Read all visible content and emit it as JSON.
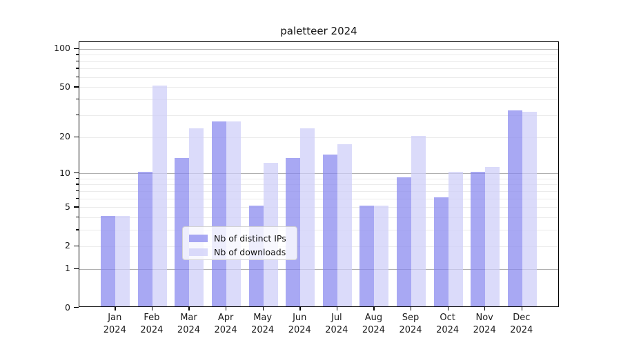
{
  "chart_data": {
    "type": "bar",
    "title": "paletteer 2024",
    "categories": [
      "Jan",
      "Feb",
      "Mar",
      "Apr",
      "May",
      "Jun",
      "Jul",
      "Aug",
      "Sep",
      "Oct",
      "Nov",
      "Dec"
    ],
    "category_year": "2024",
    "series": [
      {
        "name": "Nb of distinct IPs",
        "color": "rgba(134,134,238,0.72)",
        "values": [
          4,
          10,
          13,
          26,
          5,
          13,
          14,
          5,
          9,
          6,
          10,
          32
        ]
      },
      {
        "name": "Nb of downloads",
        "color": "rgba(205,205,248,0.72)",
        "values": [
          4,
          50,
          23,
          26,
          12,
          23,
          17,
          5,
          20,
          10,
          11,
          31
        ]
      }
    ],
    "yscale": "log1p",
    "ylim": [
      0,
      113
    ],
    "yticks": [
      0,
      1,
      2,
      5,
      10,
      20,
      50,
      100
    ],
    "grid": {
      "on": true,
      "major": [
        1,
        10,
        100
      ],
      "minor": [
        2,
        3,
        4,
        5,
        6,
        7,
        8,
        9,
        20,
        30,
        40,
        50,
        60,
        70,
        80,
        90
      ],
      "major_color": "#b0b0b0",
      "minor_color": "#ebebeb"
    },
    "xlabel": "",
    "ylabel": "",
    "legend_position": "lower center",
    "legend_labels": [
      "Nb of distinct IPs",
      "Nb of downloads"
    ]
  },
  "colors": {
    "background": "#ffffff",
    "axis": "#000000",
    "bar_dark": "rgba(134,134,238,0.72)",
    "bar_light": "rgba(205,205,248,0.72)"
  }
}
